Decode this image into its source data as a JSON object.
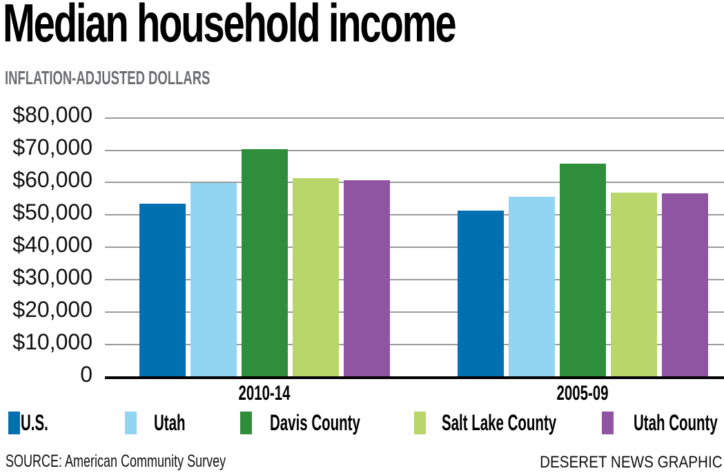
{
  "header": {
    "title": "Median household income",
    "subtitle": "INFLATION-ADJUSTED DOLLARS"
  },
  "footer": {
    "source": "SOURCE: American Community Survey",
    "credit": "DESERET NEWS GRAPHIC"
  },
  "colors": {
    "us": "#0070b0",
    "utah": "#92d5f2",
    "davis": "#2e8e3c",
    "salt_lake": "#b9d66a",
    "utah_county": "#9055a2",
    "grid": "#9a9a9a",
    "subtitle": "#6d6e71"
  },
  "chart_data": {
    "type": "bar",
    "title": "Median household income",
    "subtitle": "INFLATION-ADJUSTED DOLLARS",
    "xlabel": "",
    "ylabel": "",
    "categories": [
      "2010-14",
      "2005-09"
    ],
    "series": [
      {
        "name": "U.S.",
        "color": "#0070b0",
        "values": [
          53500,
          51400
        ]
      },
      {
        "name": "Utah",
        "color": "#92d5f2",
        "values": [
          60000,
          55700
        ]
      },
      {
        "name": "Davis County",
        "color": "#2e8e3c",
        "values": [
          70400,
          65900
        ]
      },
      {
        "name": "Salt Lake County",
        "color": "#b9d66a",
        "values": [
          61400,
          56900
        ]
      },
      {
        "name": "Utah County",
        "color": "#9055a2",
        "values": [
          60800,
          56700
        ]
      }
    ],
    "yticks": [
      "0",
      "$10,000",
      "$20,000",
      "$30,000",
      "$40,000",
      "$50,000",
      "$60,000",
      "$70,000",
      "$80,000"
    ],
    "ylim": [
      0,
      80000
    ],
    "grid": true,
    "legend_position": "bottom",
    "source": "SOURCE: American Community Survey",
    "credit": "DESERET NEWS GRAPHIC"
  }
}
